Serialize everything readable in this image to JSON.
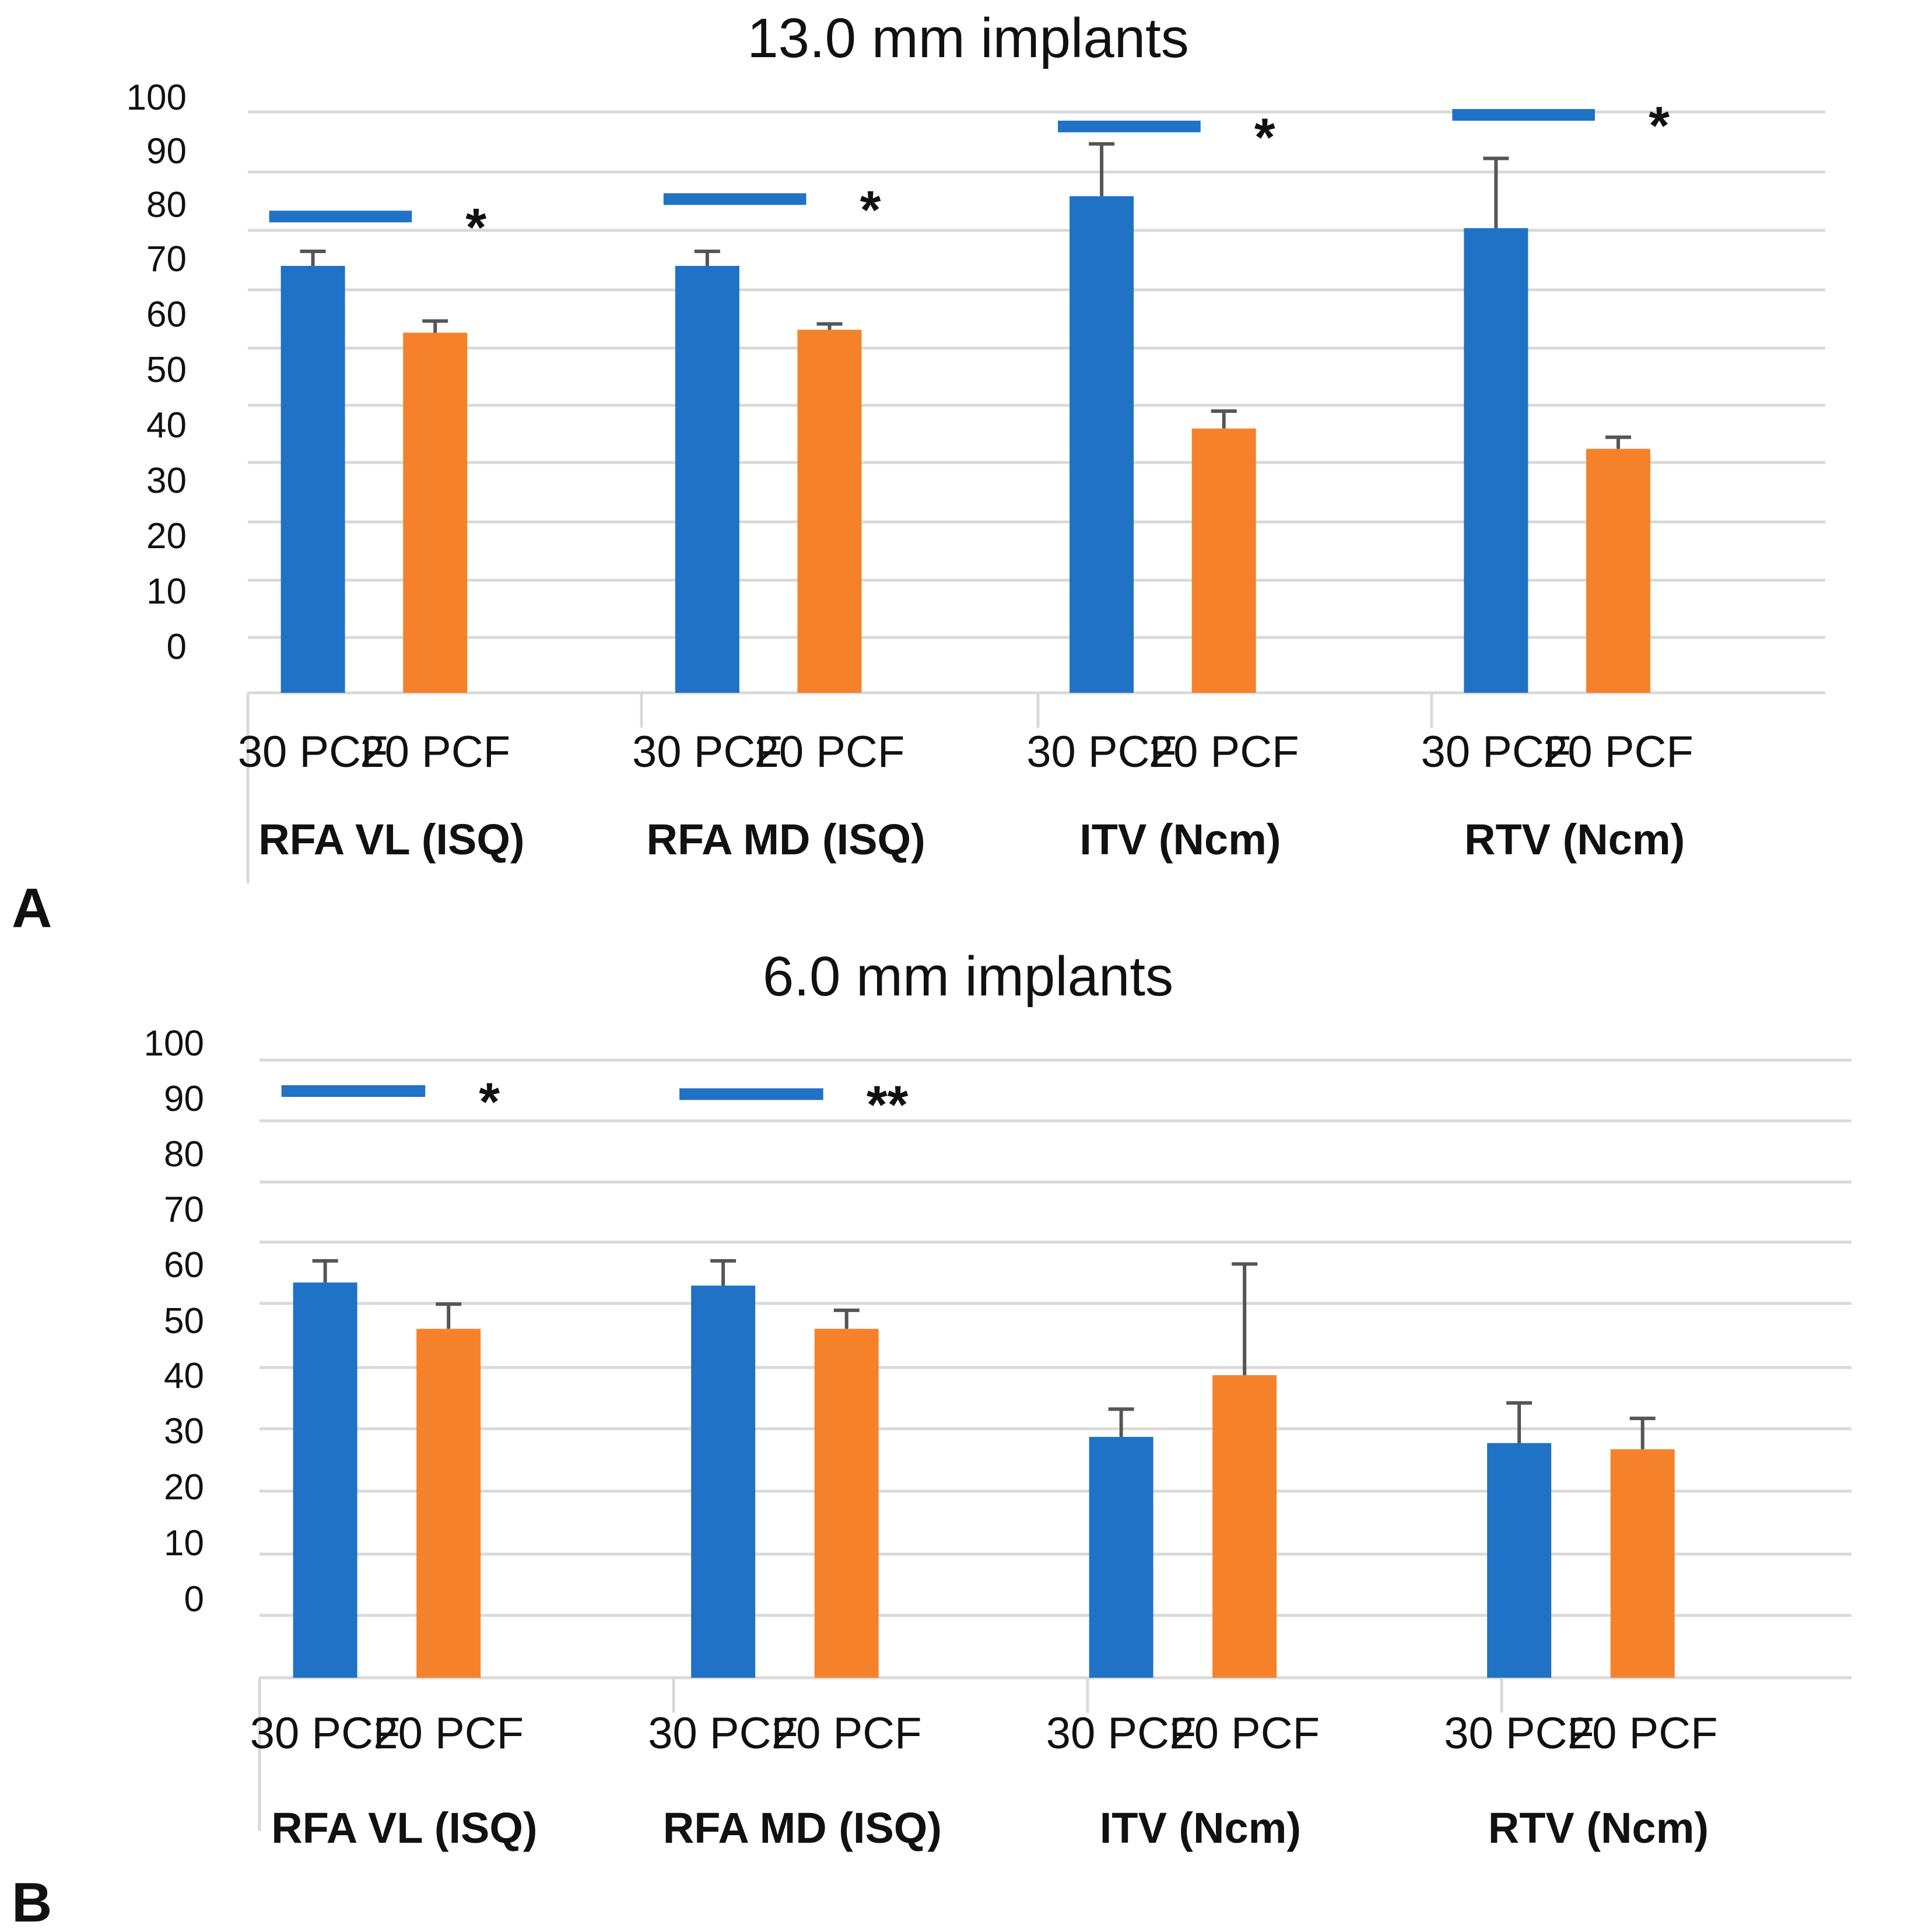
{
  "colors": {
    "blue": "#1f72c6",
    "orange": "#f5822b",
    "grid": "#d9d9d9",
    "error": "#555555",
    "sigline": "#1f72c6"
  },
  "chart_data": [
    {
      "type": "bar",
      "panel_label": "A",
      "title": "13.0 mm implants",
      "ylim": [
        0,
        100
      ],
      "yticks": [
        "0",
        "10",
        "20",
        "30",
        "40",
        "50",
        "60",
        "70",
        "80",
        "90",
        "100"
      ],
      "groups": [
        {
          "label": "RFA VL (ISQ)",
          "bars": [
            {
              "label": "30 PCF",
              "value": 73.5,
              "error": 2.5,
              "color": "blue"
            },
            {
              "label": "20 PCF",
              "value": 62,
              "error": 2,
              "color": "orange"
            }
          ],
          "significance": {
            "marker": "*",
            "level": 82
          }
        },
        {
          "label": "RFA MD (ISQ)",
          "bars": [
            {
              "label": "30 PCF",
              "value": 73.5,
              "error": 2.5,
              "color": "blue"
            },
            {
              "label": "20 PCF",
              "value": 62.5,
              "error": 1,
              "color": "orange"
            }
          ],
          "significance": {
            "marker": "*",
            "level": 85
          }
        },
        {
          "label": "ITV (Ncm)",
          "bars": [
            {
              "label": "30 PCF",
              "value": 85.5,
              "error": 9,
              "color": "blue"
            },
            {
              "label": "20 PCF",
              "value": 45.5,
              "error": 3,
              "color": "orange"
            }
          ],
          "significance": {
            "marker": "*",
            "level": 97.5
          }
        },
        {
          "label": "RTV (Ncm)",
          "bars": [
            {
              "label": "30 PCF",
              "value": 80,
              "error": 12,
              "color": "blue"
            },
            {
              "label": "20 PCF",
              "value": 42,
              "error": 2,
              "color": "orange"
            }
          ],
          "significance": {
            "marker": "*",
            "level": 99.5
          }
        }
      ]
    },
    {
      "type": "bar",
      "panel_label": "B",
      "title": "6.0 mm implants",
      "ylim": [
        0,
        100
      ],
      "yticks": [
        "0",
        "10",
        "20",
        "30",
        "40",
        "50",
        "60",
        "70",
        "80",
        "90",
        "100"
      ],
      "groups": [
        {
          "label": "RFA VL (ISQ)",
          "bars": [
            {
              "label": "30 PCF",
              "value": 64,
              "error": 3.5,
              "color": "blue"
            },
            {
              "label": "20 PCF",
              "value": 56.5,
              "error": 4,
              "color": "orange"
            }
          ],
          "significance": {
            "marker": "*",
            "level": 95
          }
        },
        {
          "label": "RFA MD (ISQ)",
          "bars": [
            {
              "label": "30 PCF",
              "value": 63.5,
              "error": 4,
              "color": "blue"
            },
            {
              "label": "20 PCF",
              "value": 56.5,
              "error": 3,
              "color": "orange"
            }
          ],
          "significance": {
            "marker": "**",
            "level": 94.5
          }
        },
        {
          "label": "ITV (Ncm)",
          "bars": [
            {
              "label": "30 PCF",
              "value": 39,
              "error": 4.5,
              "color": "blue"
            },
            {
              "label": "20 PCF",
              "value": 49,
              "error": 18,
              "color": "orange"
            }
          ]
        },
        {
          "label": "RTV (Ncm)",
          "bars": [
            {
              "label": "30 PCF",
              "value": 38,
              "error": 6.5,
              "color": "blue"
            },
            {
              "label": "20 PCF",
              "value": 37,
              "error": 5,
              "color": "orange"
            }
          ]
        }
      ]
    }
  ]
}
